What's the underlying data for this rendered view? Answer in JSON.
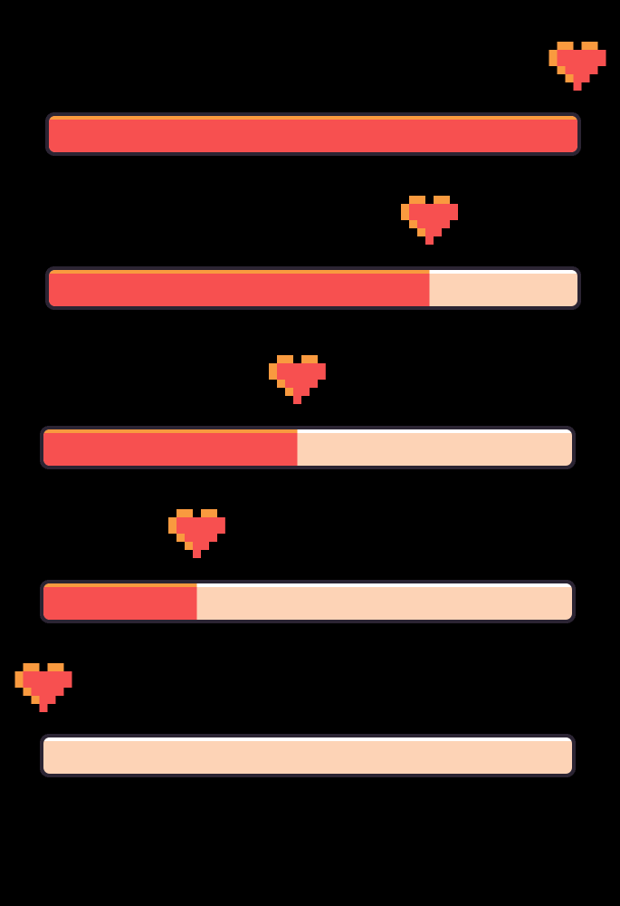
{
  "health_bars": [
    100,
    72,
    48,
    29,
    0
  ]
}
